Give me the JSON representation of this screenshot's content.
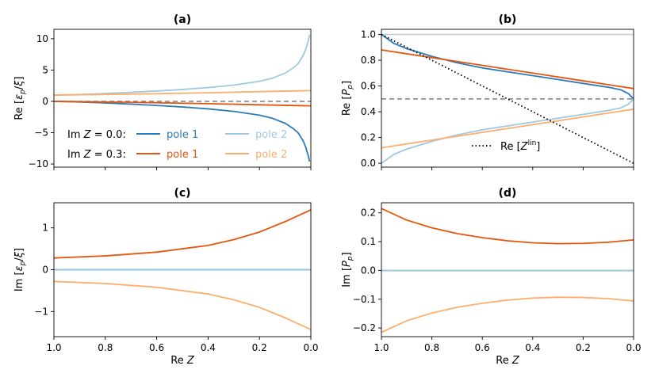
{
  "figure": {
    "legend": {
      "row1_label": "Im Z = 0.0:",
      "row2_label": "Im Z = 0.3:",
      "entries": [
        {
          "text": "pole 1",
          "color": "#2b7bba"
        },
        {
          "text": "pole 2",
          "color": "#9ecae1"
        },
        {
          "text": "pole 1",
          "color": "#e6550d"
        },
        {
          "text": "pole 2",
          "color": "#fdae6b"
        }
      ],
      "reference_label": "Re [Z^lin]"
    },
    "x_axis_label": "Re Z"
  },
  "chart_data": [
    {
      "id": "a",
      "type": "line",
      "title": "(a)",
      "ylabel": "Re [εp/ξ]",
      "xlabel": "",
      "xlim": [
        1.0,
        0.0
      ],
      "ylim": [
        -10.5,
        11.5
      ],
      "yticks": [
        -10,
        -5,
        0,
        5,
        10
      ],
      "xticks": [
        1.0,
        0.8,
        0.6,
        0.4,
        0.2,
        0.0
      ],
      "show_xticklabels": false,
      "hline": {
        "y": 0,
        "style": "dashed",
        "color": "#7f7f7f"
      },
      "series": [
        {
          "name": "pole 1",
          "im_z": 0.0,
          "color": "#2b7bba",
          "x": [
            1.0,
            0.9,
            0.8,
            0.7,
            0.6,
            0.5,
            0.4,
            0.3,
            0.2,
            0.15,
            0.1,
            0.07,
            0.05,
            0.03,
            0.02,
            0.01,
            0.005
          ],
          "y": [
            0.0,
            -0.1,
            -0.25,
            -0.45,
            -0.65,
            -0.9,
            -1.2,
            -1.6,
            -2.2,
            -2.7,
            -3.5,
            -4.3,
            -5.0,
            -6.3,
            -7.3,
            -8.7,
            -9.6
          ]
        },
        {
          "name": "pole 2",
          "im_z": 0.0,
          "color": "#9ecae1",
          "x": [
            1.0,
            0.9,
            0.8,
            0.7,
            0.6,
            0.5,
            0.4,
            0.3,
            0.2,
            0.15,
            0.1,
            0.07,
            0.05,
            0.03,
            0.02,
            0.01,
            0.005
          ],
          "y": [
            1.0,
            1.1,
            1.25,
            1.45,
            1.65,
            1.9,
            2.2,
            2.6,
            3.2,
            3.7,
            4.5,
            5.3,
            6.0,
            7.3,
            8.3,
            9.7,
            10.6
          ]
        },
        {
          "name": "pole 1",
          "im_z": 0.3,
          "color": "#e6550d",
          "x": [
            1.0,
            0.8,
            0.6,
            0.4,
            0.2,
            0.0
          ],
          "y": [
            0.0,
            -0.1,
            -0.22,
            -0.37,
            -0.55,
            -0.72
          ]
        },
        {
          "name": "pole 2",
          "im_z": 0.3,
          "color": "#fdae6b",
          "x": [
            1.0,
            0.8,
            0.6,
            0.4,
            0.2,
            0.0
          ],
          "y": [
            1.0,
            1.1,
            1.22,
            1.37,
            1.55,
            1.72
          ]
        }
      ]
    },
    {
      "id": "b",
      "type": "line",
      "title": "(b)",
      "ylabel": "Re [Pp]",
      "xlabel": "",
      "xlim": [
        1.0,
        0.0
      ],
      "ylim": [
        -0.03,
        1.04
      ],
      "yticks": [
        0.0,
        0.2,
        0.4,
        0.6,
        0.8,
        1.0
      ],
      "xticks": [
        1.0,
        0.8,
        0.6,
        0.4,
        0.2,
        0.0
      ],
      "show_xticklabels": false,
      "hline": {
        "y": 0.5,
        "style": "dashed",
        "color": "#7f7f7f"
      },
      "hline2": {
        "y": 1.0,
        "style": "solid",
        "color": "#c8c8c8"
      },
      "series": [
        {
          "name": "pole 1",
          "im_z": 0.0,
          "color": "#2b7bba",
          "x": [
            1.0,
            0.95,
            0.9,
            0.8,
            0.7,
            0.6,
            0.5,
            0.4,
            0.3,
            0.2,
            0.1,
            0.05,
            0.02,
            0.0
          ],
          "y": [
            1.0,
            0.93,
            0.89,
            0.83,
            0.78,
            0.74,
            0.71,
            0.68,
            0.65,
            0.62,
            0.59,
            0.57,
            0.54,
            0.5
          ]
        },
        {
          "name": "pole 2",
          "im_z": 0.0,
          "color": "#9ecae1",
          "x": [
            1.0,
            0.95,
            0.9,
            0.8,
            0.7,
            0.6,
            0.5,
            0.4,
            0.3,
            0.2,
            0.1,
            0.05,
            0.02,
            0.0
          ],
          "y": [
            0.0,
            0.07,
            0.11,
            0.17,
            0.22,
            0.26,
            0.29,
            0.32,
            0.35,
            0.38,
            0.41,
            0.43,
            0.46,
            0.5
          ]
        },
        {
          "name": "pole 1",
          "im_z": 0.3,
          "color": "#e6550d",
          "x": [
            1.0,
            0.8,
            0.6,
            0.4,
            0.2,
            0.0
          ],
          "y": [
            0.88,
            0.82,
            0.76,
            0.7,
            0.64,
            0.58
          ]
        },
        {
          "name": "pole 2",
          "im_z": 0.3,
          "color": "#fdae6b",
          "x": [
            1.0,
            0.8,
            0.6,
            0.4,
            0.2,
            0.0
          ],
          "y": [
            0.12,
            0.18,
            0.24,
            0.3,
            0.36,
            0.42
          ]
        },
        {
          "name": "Re [Z^lin]",
          "color": "#000000",
          "style": "dotted",
          "x": [
            1.0,
            0.0
          ],
          "y": [
            1.0,
            0.0
          ]
        }
      ]
    },
    {
      "id": "c",
      "type": "line",
      "title": "(c)",
      "ylabel": "Im [εp/ξ]",
      "xlabel": "Re Z",
      "xlim": [
        1.0,
        0.0
      ],
      "ylim": [
        -1.6,
        1.6
      ],
      "yticks": [
        -1,
        0,
        1
      ],
      "xticks": [
        1.0,
        0.8,
        0.6,
        0.4,
        0.2,
        0.0
      ],
      "show_xticklabels": true,
      "hline": {
        "y": 0,
        "style": "dashed",
        "color": "#7f7f7f"
      },
      "series": [
        {
          "name": "pole 1",
          "im_z": 0.0,
          "color": "#2b7bba",
          "x": [
            1.0,
            0.0
          ],
          "y": [
            0,
            0
          ]
        },
        {
          "name": "pole 2",
          "im_z": 0.0,
          "color": "#9ecae1",
          "x": [
            1.0,
            0.0
          ],
          "y": [
            0,
            0
          ]
        },
        {
          "name": "pole 1",
          "im_z": 0.3,
          "color": "#e6550d",
          "x": [
            1.0,
            0.8,
            0.6,
            0.4,
            0.3,
            0.2,
            0.1,
            0.0
          ],
          "y": [
            0.28,
            0.33,
            0.42,
            0.58,
            0.72,
            0.9,
            1.15,
            1.43
          ]
        },
        {
          "name": "pole 2",
          "im_z": 0.3,
          "color": "#fdae6b",
          "x": [
            1.0,
            0.8,
            0.6,
            0.4,
            0.3,
            0.2,
            0.1,
            0.0
          ],
          "y": [
            -0.28,
            -0.33,
            -0.42,
            -0.58,
            -0.72,
            -0.9,
            -1.15,
            -1.43
          ]
        }
      ]
    },
    {
      "id": "d",
      "type": "line",
      "title": "(d)",
      "ylabel": "Im [Pp]",
      "xlabel": "Re Z",
      "xlim": [
        1.0,
        0.0
      ],
      "ylim": [
        -0.23,
        0.235
      ],
      "yticks": [
        -0.2,
        -0.1,
        0.0,
        0.1,
        0.2
      ],
      "xticks": [
        1.0,
        0.8,
        0.6,
        0.4,
        0.2,
        0.0
      ],
      "show_xticklabels": true,
      "hline": {
        "y": 0,
        "style": "dashed",
        "color": "#7f7f7f"
      },
      "series": [
        {
          "name": "pole 1",
          "im_z": 0.0,
          "color": "#2b7bba",
          "x": [
            1.0,
            0.0
          ],
          "y": [
            0,
            0
          ]
        },
        {
          "name": "pole 2",
          "im_z": 0.0,
          "color": "#9ecae1",
          "x": [
            1.0,
            0.0
          ],
          "y": [
            0,
            0
          ]
        },
        {
          "name": "pole 1",
          "im_z": 0.3,
          "color": "#e6550d",
          "x": [
            1.0,
            0.9,
            0.8,
            0.7,
            0.6,
            0.5,
            0.4,
            0.3,
            0.2,
            0.1,
            0.0
          ],
          "y": [
            0.215,
            0.175,
            0.148,
            0.128,
            0.114,
            0.103,
            0.096,
            0.093,
            0.094,
            0.098,
            0.106
          ]
        },
        {
          "name": "pole 2",
          "im_z": 0.3,
          "color": "#fdae6b",
          "x": [
            1.0,
            0.9,
            0.8,
            0.7,
            0.6,
            0.5,
            0.4,
            0.3,
            0.2,
            0.1,
            0.0
          ],
          "y": [
            -0.215,
            -0.175,
            -0.148,
            -0.128,
            -0.114,
            -0.103,
            -0.096,
            -0.093,
            -0.094,
            -0.098,
            -0.106
          ]
        }
      ]
    }
  ]
}
